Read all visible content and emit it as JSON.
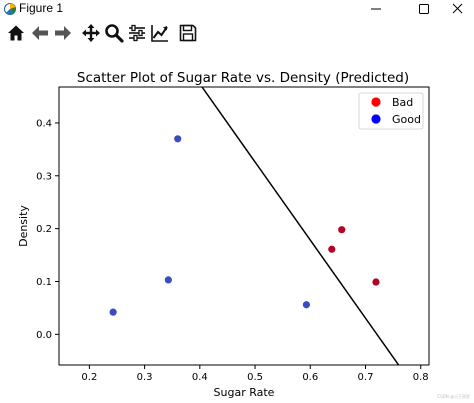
{
  "window": {
    "title": "Figure 1"
  },
  "toolbar": {
    "buttons": [
      "home-icon",
      "back-icon",
      "forward-icon",
      "pan-icon",
      "zoom-icon",
      "configure-subplots-icon",
      "edit-axis-icon",
      "save-icon"
    ]
  },
  "chart_data": {
    "type": "scatter",
    "title": "Scatter Plot of Sugar Rate vs. Density (Predicted)",
    "xlabel": "Sugar Rate",
    "ylabel": "Density",
    "xlim": [
      0.145,
      0.815
    ],
    "ylim": [
      -0.058,
      0.468
    ],
    "xticks": [
      0.2,
      0.3,
      0.4,
      0.5,
      0.6,
      0.7,
      0.8
    ],
    "yticks": [
      0.0,
      0.1,
      0.2,
      0.3,
      0.4
    ],
    "xtick_labels": [
      "0.2",
      "0.3",
      "0.4",
      "0.5",
      "0.6",
      "0.7",
      "0.8"
    ],
    "ytick_labels": [
      "0.0",
      "0.1",
      "0.2",
      "0.3",
      "0.4"
    ],
    "grid": false,
    "legend_position": "top-right",
    "series": [
      {
        "name": "Bad",
        "legend_color": "#ff0000",
        "point_color": "#b40426",
        "points": [
          {
            "x": 0.657,
            "y": 0.198
          },
          {
            "x": 0.639,
            "y": 0.161
          },
          {
            "x": 0.719,
            "y": 0.099
          }
        ]
      },
      {
        "name": "Good",
        "legend_color": "#0000ff",
        "point_color": "#3b4cc0",
        "points": [
          {
            "x": 0.36,
            "y": 0.37
          },
          {
            "x": 0.343,
            "y": 0.103
          },
          {
            "x": 0.593,
            "y": 0.056
          },
          {
            "x": 0.243,
            "y": 0.042
          }
        ]
      }
    ],
    "decision_boundary": {
      "color": "#000000",
      "points": [
        {
          "x": 0.404,
          "y": 0.468
        },
        {
          "x": 0.76,
          "y": -0.058
        }
      ]
    }
  },
  "watermark": "CSDN @小王同学"
}
